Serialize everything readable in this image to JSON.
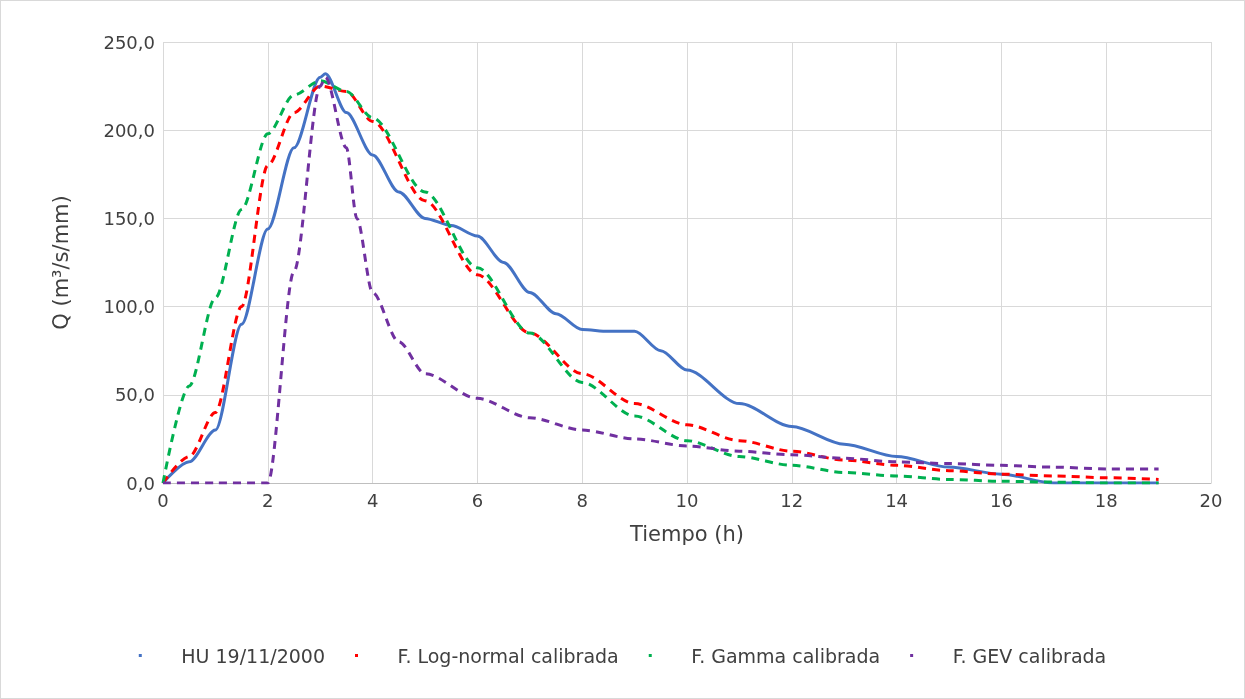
{
  "chart_data": {
    "type": "line",
    "xlabel": "Tiempo (h)",
    "ylabel": "Q (m³/s/mm)",
    "xlim": [
      0,
      20
    ],
    "xticks": [
      0,
      2,
      4,
      6,
      8,
      10,
      12,
      14,
      16,
      18,
      20
    ],
    "ylim": [
      0,
      250
    ],
    "yticks": [
      {
        "value": 0,
        "label": "0,0"
      },
      {
        "value": 50,
        "label": "50,0"
      },
      {
        "value": 100,
        "label": "100,0"
      },
      {
        "value": 150,
        "label": "150,0"
      },
      {
        "value": 200,
        "label": "200,0"
      },
      {
        "value": 250,
        "label": "250,0"
      }
    ],
    "grid": true,
    "legend": "bottom",
    "marker": "none",
    "series": [
      {
        "name": "HU 19/11/2000",
        "color": "#4472c4",
        "line_style": "solid",
        "x": [
          0,
          0.5,
          1,
          1.5,
          2,
          2.5,
          3,
          3.1,
          3.5,
          4,
          4.5,
          5,
          5.5,
          6,
          6.5,
          7,
          7.5,
          8,
          8.5,
          9,
          9.5,
          10,
          11,
          12,
          13,
          14,
          15,
          16,
          17,
          18,
          19
        ],
        "values": [
          0,
          12,
          30,
          90,
          144,
          190,
          230,
          232,
          210,
          186,
          165,
          150,
          146,
          140,
          125,
          108,
          96,
          87,
          86,
          86,
          75,
          64,
          45,
          32,
          22,
          15,
          9,
          5,
          0,
          0,
          0
        ]
      },
      {
        "name": "F. Log-normal calibrada",
        "color": "#ff0000",
        "line_style": "dashed",
        "x": [
          0,
          0.5,
          1,
          1.5,
          2,
          2.5,
          3,
          3.5,
          4,
          5,
          6,
          7,
          8,
          9,
          10,
          11,
          12,
          13,
          14,
          15,
          16,
          17,
          18,
          19
        ],
        "values": [
          0,
          15,
          40,
          100,
          180,
          210,
          225,
          222,
          205,
          160,
          118,
          85,
          62,
          45,
          33,
          24,
          18,
          13,
          10,
          7,
          5,
          4,
          3,
          2
        ]
      },
      {
        "name": "F. Gamma calibrada",
        "color": "#00b050",
        "line_style": "dashed",
        "x": [
          0,
          0.5,
          1,
          1.5,
          2,
          2.5,
          3,
          3.5,
          4,
          5,
          6,
          7,
          8,
          9,
          10,
          11,
          12,
          13,
          14,
          15,
          16,
          17,
          18,
          19
        ],
        "values": [
          0,
          55,
          105,
          155,
          198,
          220,
          228,
          222,
          207,
          165,
          122,
          85,
          57,
          38,
          24,
          15,
          10,
          6,
          4,
          2,
          1,
          0.5,
          0,
          0
        ]
      },
      {
        "name": "F. GEV calibrada",
        "color": "#7030a0",
        "line_style": "dashed",
        "x": [
          0,
          1,
          2,
          2.5,
          3,
          3.1,
          3.5,
          3.7,
          4,
          4.5,
          5,
          6,
          7,
          8,
          9,
          10,
          11,
          12,
          13,
          14,
          15,
          16,
          17,
          18,
          19
        ],
        "values": [
          0,
          0,
          0,
          120,
          225,
          230,
          190,
          150,
          108,
          80,
          62,
          48,
          37,
          30,
          25,
          21,
          18,
          16,
          14,
          12,
          11,
          10,
          9,
          8,
          8
        ]
      }
    ]
  }
}
